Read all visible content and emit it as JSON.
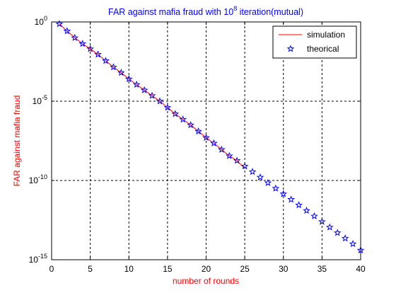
{
  "chart_data": {
    "type": "line",
    "title_main": "FAR against mafia fraud with 10",
    "title_exp": "8",
    "title_tail": " iteration(mutual)",
    "xlabel": "number of rounds",
    "ylabel": "FAR against mafia fraud",
    "xlim": [
      0,
      40
    ],
    "ylim_log10": [
      -15,
      0
    ],
    "yscale": "log",
    "grid": true,
    "legend_position": "top-right",
    "x_ticks": [
      0,
      5,
      10,
      15,
      20,
      25,
      30,
      35,
      40
    ],
    "y_ticks": [
      {
        "exp": 0,
        "base": "10",
        "sup": "0"
      },
      {
        "exp": -5,
        "base": "10",
        "sup": "-5"
      },
      {
        "exp": -10,
        "base": "10",
        "sup": "-10"
      },
      {
        "exp": -15,
        "base": "10",
        "sup": "-15"
      }
    ],
    "colors": {
      "simulation": "#ff0000",
      "theorical": "#0000ff",
      "grid": "#000000",
      "title": "#0000ff",
      "label": "#ff0000"
    },
    "series": [
      {
        "name": "simulation",
        "style": "line",
        "x": [
          1,
          2,
          3,
          4,
          5,
          6,
          7,
          8,
          9,
          10,
          11,
          12,
          13,
          14,
          15,
          16,
          17,
          18,
          19,
          20,
          21,
          22,
          23,
          24,
          25
        ],
        "log10_y": [
          -0.125,
          -0.575,
          -1.0,
          -1.375,
          -1.7,
          -2.05,
          -2.45,
          -2.85,
          -3.2,
          -3.6,
          -3.95,
          -4.3,
          -4.65,
          -5.0,
          -5.4,
          -5.8,
          -6.15,
          -6.5,
          -6.9,
          -7.3,
          -7.65,
          -8.05,
          -8.45,
          -8.75,
          -9.25
        ]
      },
      {
        "name": "theorical",
        "style": "star-markers",
        "x": [
          1,
          2,
          3,
          4,
          5,
          6,
          7,
          8,
          9,
          10,
          11,
          12,
          13,
          14,
          15,
          16,
          17,
          18,
          19,
          20,
          21,
          22,
          23,
          24,
          25,
          26,
          27,
          28,
          29,
          30,
          31,
          32,
          33,
          34,
          35,
          36,
          37,
          38,
          39,
          40
        ],
        "log10_y": [
          -0.125,
          -0.575,
          -1.0,
          -1.375,
          -1.7,
          -2.05,
          -2.45,
          -2.85,
          -3.2,
          -3.6,
          -3.95,
          -4.3,
          -4.65,
          -5.0,
          -5.4,
          -5.8,
          -6.15,
          -6.5,
          -6.9,
          -7.3,
          -7.65,
          -8.05,
          -8.45,
          -8.75,
          -9.1,
          -9.45,
          -9.8,
          -10.15,
          -10.5,
          -10.85,
          -11.2,
          -11.55,
          -11.9,
          -12.25,
          -12.6,
          -12.95,
          -13.3,
          -13.65,
          -14.0,
          -14.4
        ]
      }
    ]
  }
}
